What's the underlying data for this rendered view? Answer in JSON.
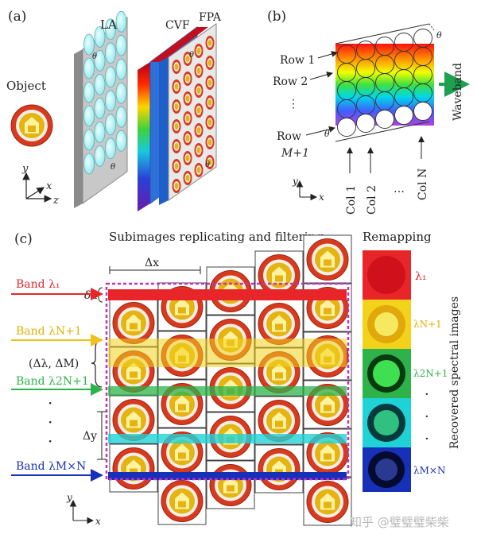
{
  "panel_a": {
    "label": "(a)",
    "object_label": "Object",
    "la_label": "LA",
    "cvf_label": "CVF",
    "fpa_label": "FPA",
    "theta": "θ",
    "axis_y": "y",
    "axis_x": "x",
    "axis_z": "z"
  },
  "panel_b": {
    "label": "(b)",
    "row1": "Row 1",
    "row2": "Row 2",
    "row_dots": "⋮",
    "row_last_a": "Row",
    "row_last_b": "M+1",
    "col1": "Col 1",
    "col2": "Col 2",
    "col_dots": "…",
    "coln": "Col N",
    "waveband": "Waveband",
    "theta": "θ",
    "axis_y": "y",
    "axis_x": "x"
  },
  "panel_c": {
    "label": "(c)",
    "heading_left": "Subimages replicating and filtering",
    "heading_right": "Remapping",
    "delta_x": "Δx",
    "delta_y": "Δy",
    "delta_lambda": "δλ",
    "delta_pair": "(Δλ, ΔM)",
    "band1": "Band λ₁",
    "band_n1": "Band λN+1",
    "band_2n1": "Band λ2N+1",
    "band_mn": "Band λM×N",
    "vdots": "·",
    "out1": "λ₁",
    "out2": "λN+1",
    "out3": "λ2N+1",
    "out4": "λM×N",
    "recovered": "Recovered spectral images",
    "axis_y": "y",
    "axis_x": "x"
  },
  "colors": {
    "red": "#e8262a",
    "yellow": "#f2d21b",
    "green": "#2db34a",
    "cyan": "#1fd2d6",
    "blue": "#1730b8",
    "magenta": "#c42fbf",
    "badge": "#d6371c"
  },
  "watermark": "知乎 @璧璧璧柴柴"
}
